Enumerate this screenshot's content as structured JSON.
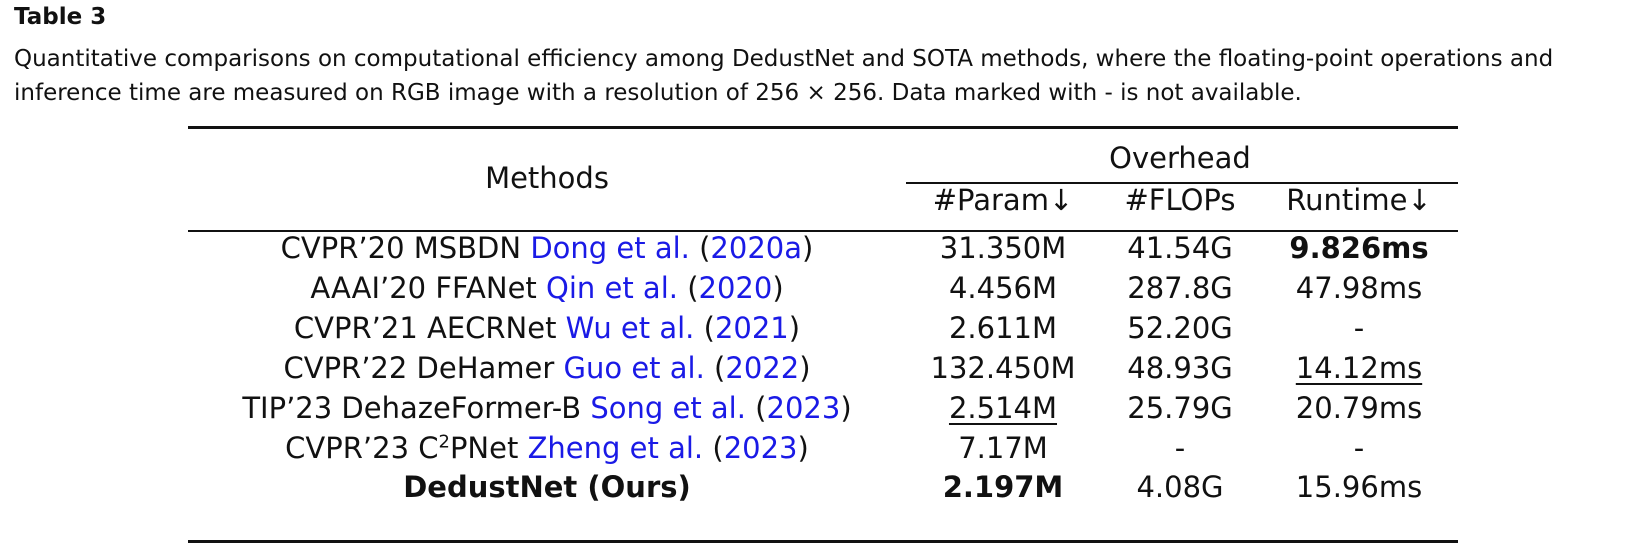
{
  "caption": {
    "label": "Table 3",
    "text": "Quantitative comparisons on computational efficiency among DedustNet and SOTA methods, where the floating-point operations and inference time are measured on RGB image with a resolution of 256 × 256. Data marked with - is not available."
  },
  "header": {
    "methods": "Methods",
    "overhead": "Overhead",
    "param": "#Param↓",
    "flops": "#FLOPs",
    "runtime": "Runtime↓"
  },
  "rows": [
    {
      "venue": "CVPR’20 MSBDN",
      "venue_sup": "",
      "venue_rest": "",
      "author": "Dong et al.",
      "year": "2020a",
      "param": "31.350M",
      "flops": "41.54G",
      "runtime": "9.826ms"
    },
    {
      "venue": "AAAI’20 FFANet",
      "venue_sup": "",
      "venue_rest": "",
      "author": "Qin et al.",
      "year": "2020",
      "param": "4.456M",
      "flops": "287.8G",
      "runtime": "47.98ms"
    },
    {
      "venue": "CVPR’21 AECRNet",
      "venue_sup": "",
      "venue_rest": "",
      "author": "Wu et al.",
      "year": "2021",
      "param": "2.611M",
      "flops": "52.20G",
      "runtime": "-"
    },
    {
      "venue": "CVPR’22 DeHamer",
      "venue_sup": "",
      "venue_rest": "",
      "author": "Guo et al.",
      "year": "2022",
      "param": "132.450M",
      "flops": "48.93G",
      "runtime": "14.12ms"
    },
    {
      "venue": "TIP’23 DehazeFormer-B",
      "venue_sup": "",
      "venue_rest": "",
      "author": "Song et al.",
      "year": "2023",
      "param": "2.514M",
      "flops": "25.79G",
      "runtime": "20.79ms"
    },
    {
      "venue": "CVPR’23 C",
      "venue_sup": "2",
      "venue_rest": "PNet",
      "author": "Zheng et al.",
      "year": "2023",
      "param": "7.17M",
      "flops": "-",
      "runtime": "-"
    }
  ],
  "ours": {
    "method": "DedustNet (Ours)",
    "param": "2.197M",
    "flops": "4.08G",
    "runtime": "15.96ms"
  }
}
